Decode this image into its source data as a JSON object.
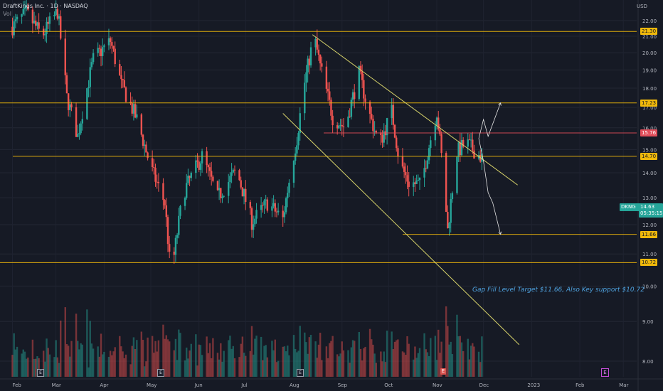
{
  "legend": {
    "symbol_line": "DraftKings Inc. · 1D · NASDAQ",
    "volume_label": "Vol"
  },
  "currency": "USD",
  "annotation": "Gap Fill Level Target $11.66, Also Key support $10.72",
  "ticker": "DKNG",
  "last_price": "14.63",
  "countdown": "05:35:15",
  "colors": {
    "background": "#161a25",
    "up": "#26a69a",
    "down": "#ef5350",
    "level": "#f0b90b",
    "trend": "#d7d36a",
    "resistance_red": "#e04d5a"
  },
  "chart_data": {
    "type": "candlestick",
    "title": "",
    "xlabel": "",
    "ylabel": "",
    "x_ticks": [
      "Feb",
      "Mar",
      "Apr",
      "May",
      "Jun",
      "Jul",
      "Aug",
      "Sep",
      "Oct",
      "Nov",
      "Dec",
      "2023",
      "Feb",
      "Mar"
    ],
    "y_ticks": [
      "8.00",
      "9.00",
      "10.00",
      "11.00",
      "12.00",
      "13.00",
      "14.00",
      "15.00",
      "16.00",
      "17.00",
      "18.00",
      "19.00",
      "20.00",
      "21.00",
      "22.00"
    ],
    "ylim": [
      7.8,
      22.9
    ],
    "y_scale": "log",
    "grid": true,
    "horizontal_levels": [
      {
        "price": 21.3,
        "label": "21.30",
        "color": "#f0b90b"
      },
      {
        "price": 17.23,
        "label": "17.23",
        "color": "#f0b90b"
      },
      {
        "price": 15.76,
        "label": "15.76",
        "color": "#e04d5a"
      },
      {
        "price": 14.7,
        "label": "14.70",
        "color": "#f0b90b"
      },
      {
        "price": 11.66,
        "label": "11.66",
        "color": "#f0b90b"
      },
      {
        "price": 10.72,
        "label": "10.72",
        "color": "#f0b90b"
      }
    ],
    "channel": {
      "upper": [
        [
          "2022-08-13",
          21.1
        ],
        [
          "2022-12-23",
          13.5
        ]
      ],
      "lower": [
        [
          "2022-07-25",
          16.7
        ],
        [
          "2022-12-24",
          8.4
        ]
      ]
    },
    "projection_paths": [
      [
        [
          "2022-11-28",
          15.5
        ],
        [
          "2022-12-01",
          16.4
        ],
        [
          "2022-12-04",
          15.6
        ],
        [
          "2022-12-12",
          17.23
        ]
      ],
      [
        [
          "2022-11-28",
          15.5
        ],
        [
          "2022-12-01",
          14.5
        ],
        [
          "2022-12-04",
          13.2
        ],
        [
          "2022-12-07",
          12.8
        ],
        [
          "2022-12-12",
          11.66
        ]
      ]
    ],
    "ohlc_summary": {
      "start": "2022-02-01",
      "end": "2022-11-30",
      "high": 22.9,
      "low": 9.8,
      "last": 14.63
    }
  }
}
